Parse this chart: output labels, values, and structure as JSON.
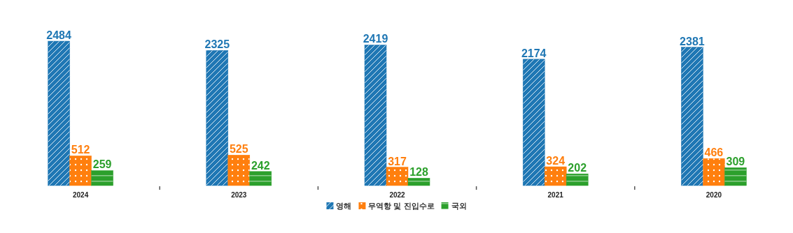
{
  "chart_data": {
    "type": "bar",
    "categories": [
      "2024",
      "2023",
      "2022",
      "2021",
      "2020"
    ],
    "series": [
      {
        "name": "영해",
        "color": "#1f77b4",
        "values": [
          2484,
          2325,
          2419,
          2174,
          2381
        ]
      },
      {
        "name": "무역항 및 진입수로",
        "color": "#ff7f0e",
        "values": [
          512,
          525,
          317,
          324,
          466
        ]
      },
      {
        "name": "국외",
        "color": "#2ca02c",
        "values": [
          259,
          242,
          128,
          202,
          309
        ]
      }
    ],
    "data_labels": true,
    "legend": "bottom"
  }
}
